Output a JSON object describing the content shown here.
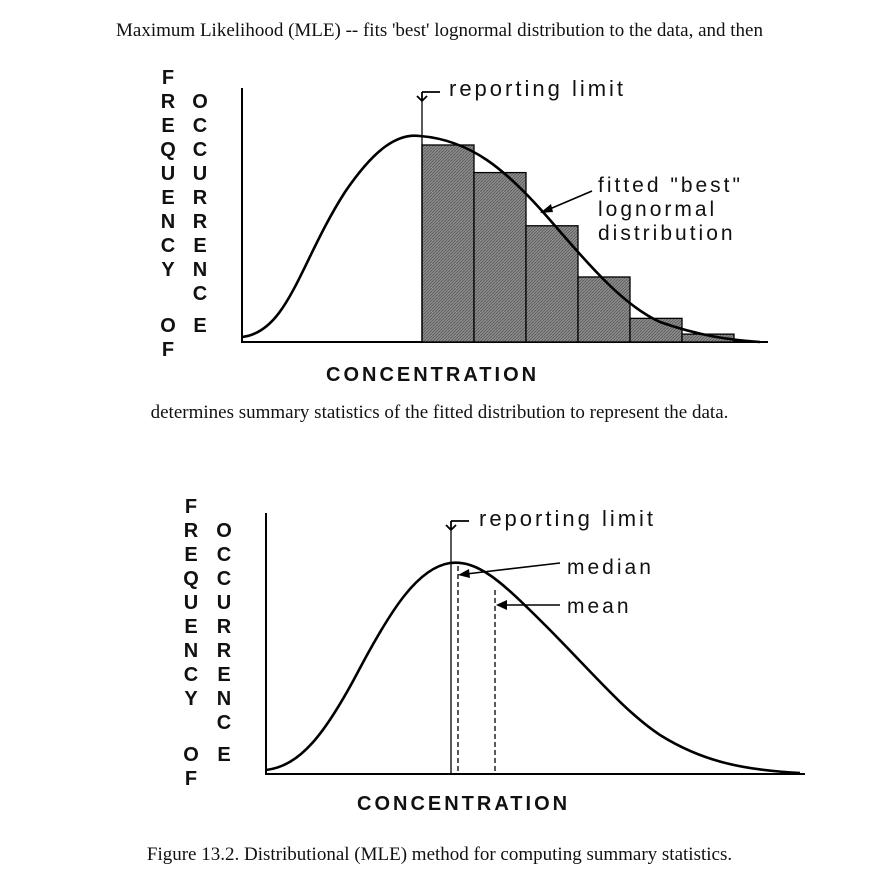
{
  "text": {
    "top_caption": "Maximum Likelihood (MLE) -- fits 'best' lognormal distribution to the data, and then",
    "middle_caption": "determines summary statistics of the fitted distribution to represent the data.",
    "figure_caption": "Figure 13.2.  Distributional (MLE) method for computing summary statistics."
  },
  "diagram1": {
    "ylabel_col1": [
      "F",
      "R",
      "E",
      "Q",
      "U",
      "E",
      "N",
      "C",
      "Y",
      "",
      "O",
      "F"
    ],
    "ylabel_col2": [
      "O",
      "C",
      "C",
      "U",
      "R",
      "R",
      "E",
      "N",
      "C",
      "E"
    ],
    "xlabel": "CONCENTRATION",
    "reporting_limit_label": "reporting limit",
    "fit_label_lines": [
      "fitted \"best\"",
      "lognormal",
      "distribution"
    ],
    "histogram_bar_values": [
      100,
      86,
      59,
      33,
      12,
      4
    ]
  },
  "diagram2": {
    "ylabel_col1": [
      "F",
      "R",
      "E",
      "Q",
      "U",
      "E",
      "N",
      "C",
      "Y",
      "",
      "O",
      "F"
    ],
    "ylabel_col2": [
      "O",
      "C",
      "C",
      "U",
      "R",
      "R",
      "E",
      "N",
      "C",
      "E"
    ],
    "xlabel": "CONCENTRATION",
    "reporting_limit_label": "reporting limit",
    "median_label": "median",
    "mean_label": "mean"
  }
}
